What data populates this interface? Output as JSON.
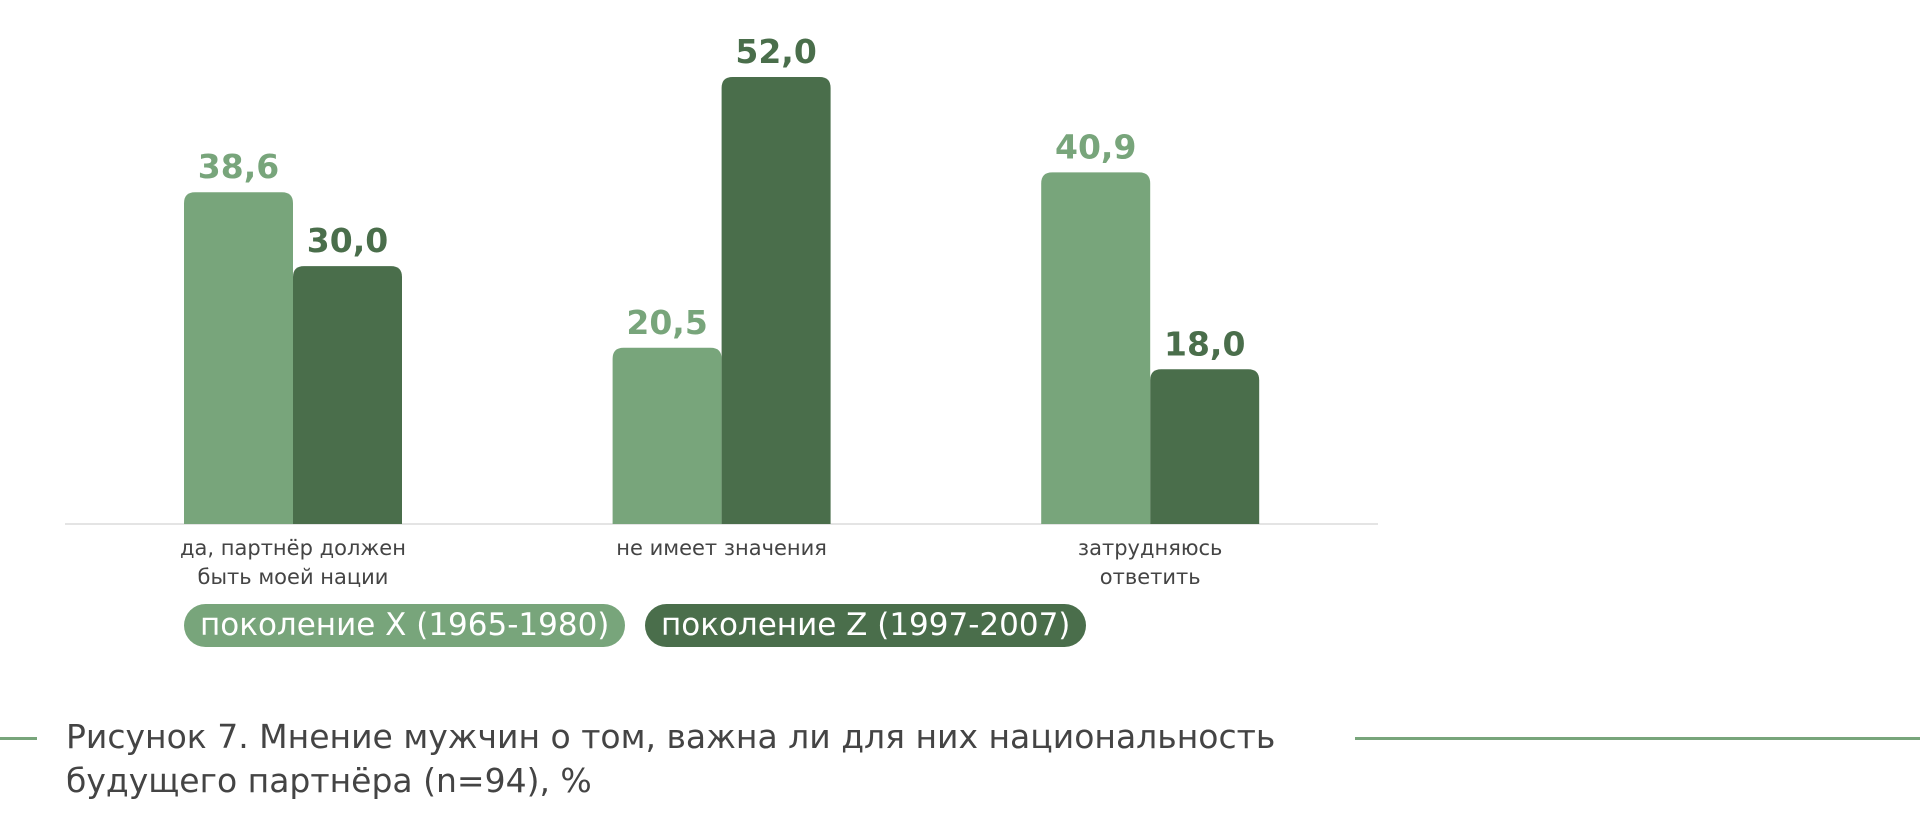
{
  "chart_data": {
    "type": "bar",
    "title": "Рисунок 7. Мнение мужчин о том, важна ли для них национальность\nбудущего партнёра (n=94), %",
    "categories": [
      "да, партнёр должен\nбыть моей нации",
      "не имеет значения",
      "затрудняюсь\nответить"
    ],
    "series": [
      {
        "name": "поколение X (1965-1980)",
        "color": "#78a57b",
        "values": [
          38.6,
          20.5,
          40.9
        ],
        "value_labels": [
          "38,6",
          "20,5",
          "40,9"
        ]
      },
      {
        "name": "поколение Z (1997-2007)",
        "color": "#4a6e4b",
        "values": [
          30.0,
          52.0,
          18.0
        ],
        "value_labels": [
          "30,0",
          "52,0",
          "18,0"
        ]
      }
    ]
  }
}
